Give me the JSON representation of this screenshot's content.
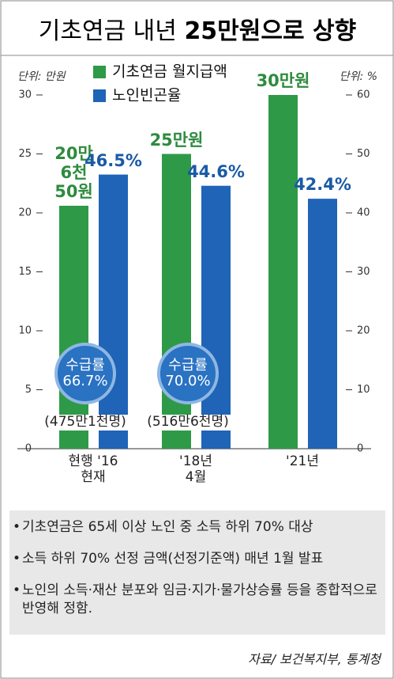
{
  "chart_data": {
    "type": "bar",
    "title": "기초연금 내년",
    "title_highlight": "25만원으로 상향",
    "y_unit": "단위: 만원",
    "y2_unit": "단위: %",
    "categories": [
      "현행 '16\n현재",
      "'18년\n4월",
      "'21년"
    ],
    "series": [
      {
        "name": "기초연금 월지급액",
        "color": "#2e9a48",
        "label_color": "#2e8b3e",
        "values": [
          20.605,
          25,
          30
        ],
        "value_labels": [
          "20만\n6천\n50원",
          "25만원",
          "30만원"
        ]
      },
      {
        "name": "노인빈곤율",
        "color": "#1f64b6",
        "label_color": "#1a5aa6",
        "axis": "y2",
        "values": [
          46.5,
          44.6,
          42.4
        ],
        "value_labels": [
          "46.5%",
          "44.6%",
          "42.4%"
        ]
      }
    ],
    "ylim": [
      0,
      30
    ],
    "yticks": [
      0,
      5,
      10,
      15,
      20,
      25,
      30
    ],
    "y2lim": [
      0,
      60
    ],
    "y2ticks": [
      0,
      10,
      20,
      30,
      40,
      50,
      60
    ],
    "annotations": [
      {
        "bubble": "수급률\n66.7%",
        "caption": "(475만1천명)"
      },
      {
        "bubble": "수급률\n70.0%",
        "caption": "(516만6천명)"
      }
    ],
    "notes": [
      "기초연금은 65세 이상 노인 중 소득 하위 70% 대상",
      "소득 하위 70% 선정 금액(선정기준액) 매년 1월 발표",
      "노인의 소득·재산 분포와 임금·지가·물가상승률 등을 종합적으로 반영해 정함."
    ],
    "source": "자료/ 보건복지부, 통계청"
  }
}
